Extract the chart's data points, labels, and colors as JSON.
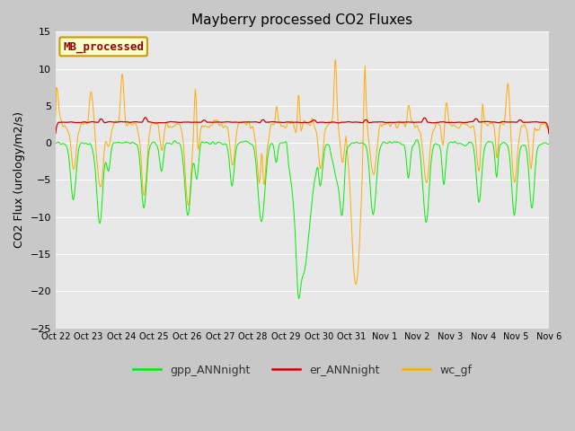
{
  "title": "Mayberry processed CO2 Fluxes",
  "ylabel": "CO2 Flux (urology/m2/s)",
  "ylim": [
    -25,
    15
  ],
  "yticks": [
    -25,
    -20,
    -15,
    -10,
    -5,
    0,
    5,
    10,
    15
  ],
  "fig_facecolor": "#c8c8c8",
  "ax_facecolor": "#e8e8e8",
  "grid_color": "#ffffff",
  "line_colors": {
    "gpp": "#00ee00",
    "er": "#cc0000",
    "wc": "#ffaa00"
  },
  "legend_label": "MB_processed",
  "legend_label_color": "#990000",
  "legend_box_facecolor": "#ffffcc",
  "legend_box_edgecolor": "#cc9900",
  "x_labels": [
    "Oct 22",
    "Oct 23",
    "Oct 24",
    "Oct 25",
    "Oct 26",
    "Oct 27",
    "Oct 28",
    "Oct 29",
    "Oct 30",
    "Oct 31",
    "Nov 1",
    "Nov 2",
    "Nov 3",
    "Nov 4",
    "Nov 5",
    "Nov 6"
  ],
  "n_points": 672,
  "title_fontsize": 11,
  "axis_fontsize": 9,
  "tick_fontsize": 8,
  "legend_fontsize": 9
}
